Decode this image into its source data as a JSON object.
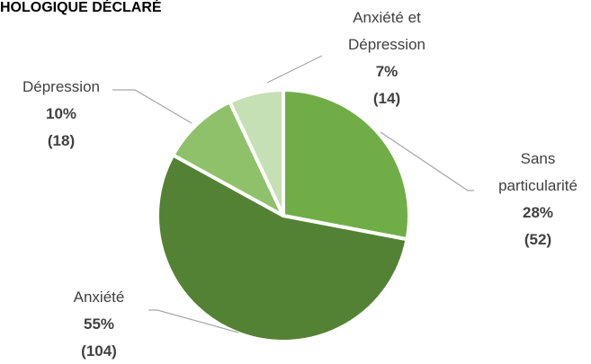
{
  "chart_data": {
    "type": "pie",
    "title": "HOLOGIQUE DÉCLARÉ",
    "categories": [
      "Sans particularité",
      "Anxiété",
      "Dépression",
      "Anxiété et Dépression"
    ],
    "values": [
      28,
      55,
      10,
      7
    ],
    "value_labels": [
      "28%",
      "55%",
      "10%",
      "7%"
    ],
    "counts": [
      52,
      104,
      18,
      14
    ],
    "count_labels": [
      "(52)",
      "(104)",
      "(18)",
      "(14)"
    ],
    "colors": [
      "#70ad47",
      "#548235",
      "#8fc16a",
      "#c5e0b4"
    ]
  }
}
